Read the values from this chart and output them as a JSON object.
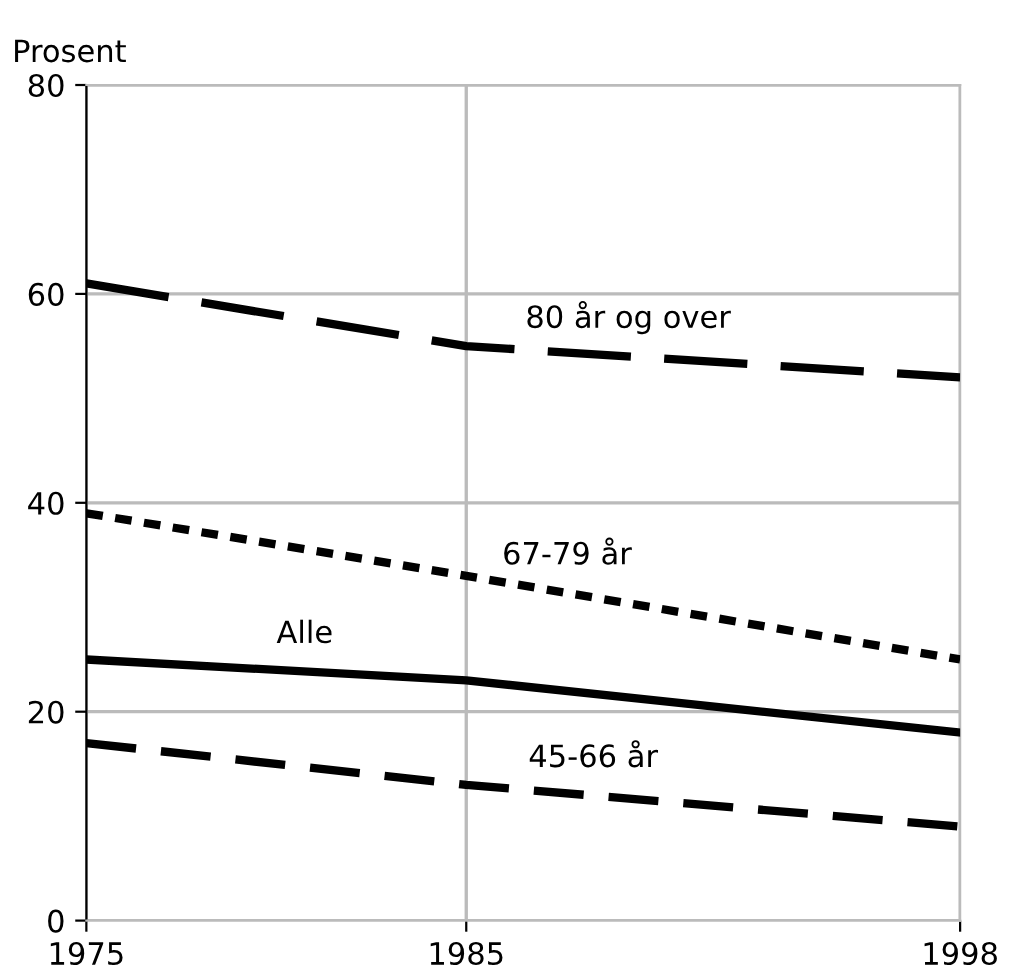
{
  "chart_data": {
    "type": "line",
    "ylabel": "Prosent",
    "x": [
      1975,
      1985,
      1998
    ],
    "xlim": [
      1975,
      1998
    ],
    "xticks": [
      1975,
      1985,
      1998
    ],
    "ylim": [
      0,
      80
    ],
    "yticks": [
      0,
      20,
      40,
      60,
      80
    ],
    "grid": true,
    "legend": false,
    "series": [
      {
        "name": "80 år og over",
        "color": "#000000",
        "line_style": "longdash",
        "values": [
          61,
          55,
          52
        ]
      },
      {
        "name": "67-79 år",
        "color": "#000000",
        "line_style": "dotted",
        "values": [
          39,
          33,
          25
        ]
      },
      {
        "name": "Alle",
        "color": "#000000",
        "line_style": "solid",
        "values": [
          25,
          23,
          18
        ]
      },
      {
        "name": "45-66 år",
        "color": "#000000",
        "line_style": "dashed",
        "values": [
          17,
          13,
          9
        ]
      }
    ]
  }
}
